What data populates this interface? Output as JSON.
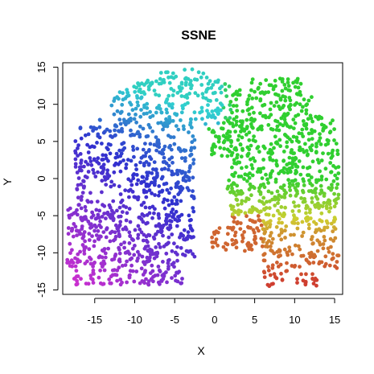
{
  "chart_data": {
    "type": "scatter",
    "title": "SSNE",
    "xlabel": "X",
    "ylabel": "Y",
    "xlim": [
      -19,
      16
    ],
    "ylim": [
      -15.6,
      15.6
    ],
    "x_ticks": [
      -15,
      -10,
      -5,
      0,
      5,
      10,
      15
    ],
    "y_ticks": [
      -15,
      -10,
      -5,
      0,
      5,
      10,
      15
    ],
    "grid": false,
    "legend": "none",
    "point_style": "filled circle",
    "color_encoding": "rainbow hue along the manifold (magenta/purple lower-left through blue, cyan, green, yellow to red lower-right)",
    "n_points_approx": 2000,
    "regions": [
      {
        "name": "left lobe",
        "x_range": [
          -18.5,
          -2.5
        ],
        "y_range": [
          -14.5,
          13.5
        ],
        "colors": [
          "#b040c0",
          "#5030c0",
          "#3050b8",
          "#30a8c0"
        ]
      },
      {
        "name": "top bridge",
        "x_range": [
          -10,
          3
        ],
        "y_range": [
          5,
          14.8
        ],
        "colors": [
          "#30a8c0",
          "#38c0b0"
        ]
      },
      {
        "name": "right-top lobe",
        "x_range": [
          0.5,
          14.5
        ],
        "y_range": [
          -1,
          13.5
        ],
        "colors": [
          "#40c040",
          "#48c848"
        ]
      },
      {
        "name": "right-middle",
        "x_range": [
          1,
          15.5
        ],
        "y_range": [
          -8,
          3
        ],
        "colors": [
          "#90c030",
          "#c8b030"
        ]
      },
      {
        "name": "right-bottom",
        "x_range": [
          -0.5,
          15.5
        ],
        "y_range": [
          -14.5,
          -3
        ],
        "colors": [
          "#c88030",
          "#c84030",
          "#c03028"
        ]
      }
    ],
    "colors": {
      "magenta": "#c040c0",
      "purple": "#6030c8",
      "blue": "#3048c0",
      "cyan": "#30b0c0",
      "green": "#40c040",
      "yellow": "#c8c030",
      "orange": "#c87830",
      "red": "#c03030"
    }
  }
}
